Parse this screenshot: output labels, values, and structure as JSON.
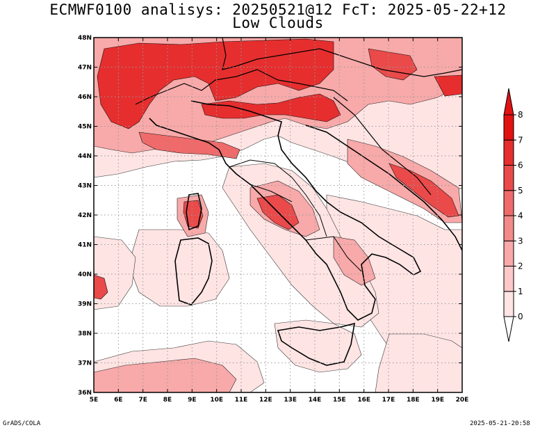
{
  "title_line1": "ECMWF0100 analisys: 20250521@12 FcT: 2025-05-22+12",
  "title_line2": "Low Clouds",
  "credit": "GrADS/COLA",
  "timestamp": "2025-05-21-20:58",
  "map": {
    "lon_range": [
      5,
      20
    ],
    "lat_range": [
      36,
      48
    ],
    "lon_ticks": [
      "5E",
      "6E",
      "7E",
      "8E",
      "9E",
      "10E",
      "11E",
      "12E",
      "13E",
      "14E",
      "15E",
      "16E",
      "17E",
      "18E",
      "19E",
      "20E"
    ],
    "lat_ticks": [
      "36N",
      "37N",
      "38N",
      "39N",
      "40N",
      "41N",
      "42N",
      "43N",
      "44N",
      "45N",
      "46N",
      "47N",
      "48N"
    ],
    "grid": "dotted"
  },
  "colorbar": {
    "levels": [
      "0",
      "1",
      "2",
      "3",
      "4",
      "5",
      "6",
      "7",
      "8"
    ],
    "colors": [
      "#ffe4e4",
      "#fcc8c8",
      "#f8a9a9",
      "#f38a8a",
      "#ef6a6a",
      "#ea4a4a",
      "#e62e2e",
      "#e21212"
    ]
  }
}
